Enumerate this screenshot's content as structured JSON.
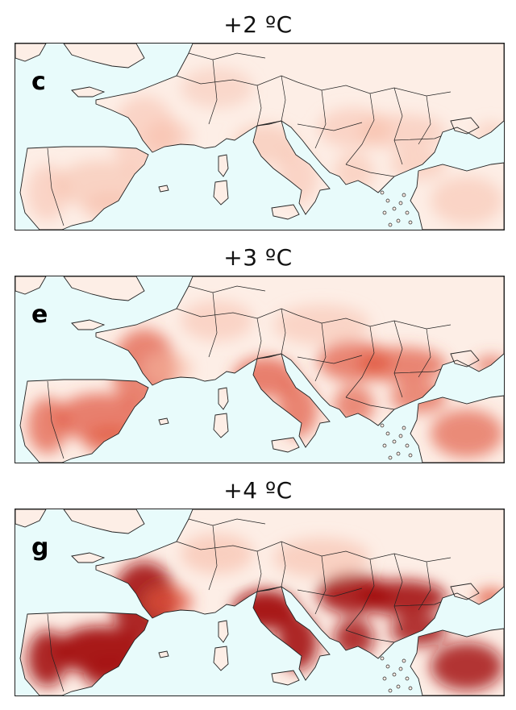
{
  "figure": {
    "panels": [
      {
        "title": "+2 ºC",
        "letter": "c",
        "intensity": 0.25
      },
      {
        "title": "+3 ºC",
        "letter": "e",
        "intensity": 0.6
      },
      {
        "title": "+4 ºC",
        "letter": "g",
        "intensity": 1.0
      }
    ]
  },
  "colors": {
    "sea": "#e8fbfb",
    "land_base": "#fdeee6",
    "heat_low": "#f6b7a2",
    "heat_mid": "#e0523a",
    "heat_high": "#a3110f",
    "border": "#222222"
  }
}
